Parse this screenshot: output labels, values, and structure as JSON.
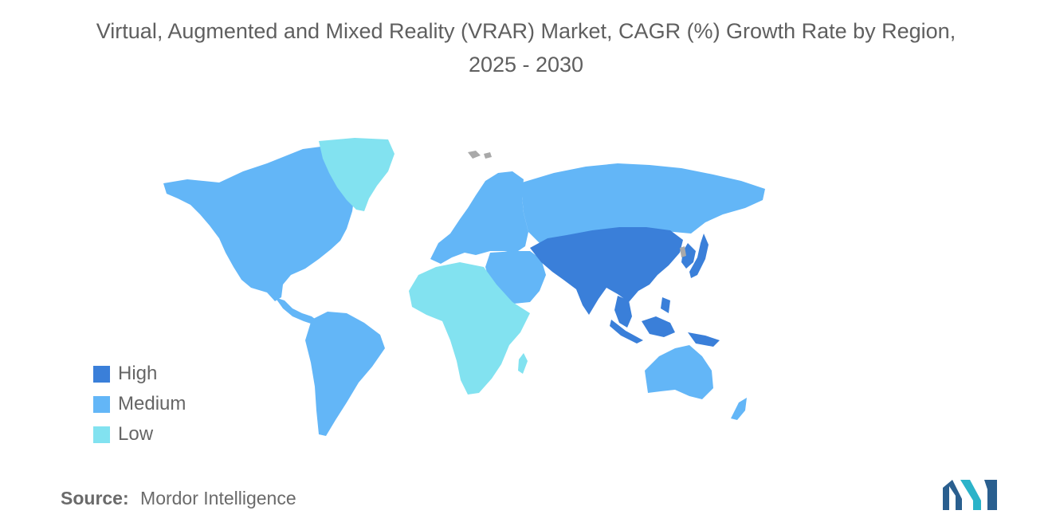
{
  "title": {
    "line1": "Virtual, Augmented and Mixed Reality (VRAR) Market, CAGR (%) Growth Rate by Region,",
    "line2": "2025 - 2030"
  },
  "colors": {
    "high": "#3a7fd9",
    "medium": "#63b6f7",
    "low": "#82e2f0",
    "no_data": "#a9a9a9"
  },
  "legend": [
    {
      "label": "High",
      "level": "high"
    },
    {
      "label": "Medium",
      "level": "medium"
    },
    {
      "label": "Low",
      "level": "low"
    }
  ],
  "regions": {
    "north_america": "medium",
    "south_america": "medium",
    "europe": "medium",
    "russia_central_asia": "medium",
    "middle_east": "medium",
    "greenland": "low",
    "africa": "low",
    "china_south_asia": "high",
    "japan_korea": "high",
    "southeast_asia": "high",
    "australia_nz": "medium"
  },
  "source": {
    "key": "Source:",
    "value": "Mordor Intelligence"
  },
  "logo": {
    "name": "mordor-intelligence-logo"
  }
}
